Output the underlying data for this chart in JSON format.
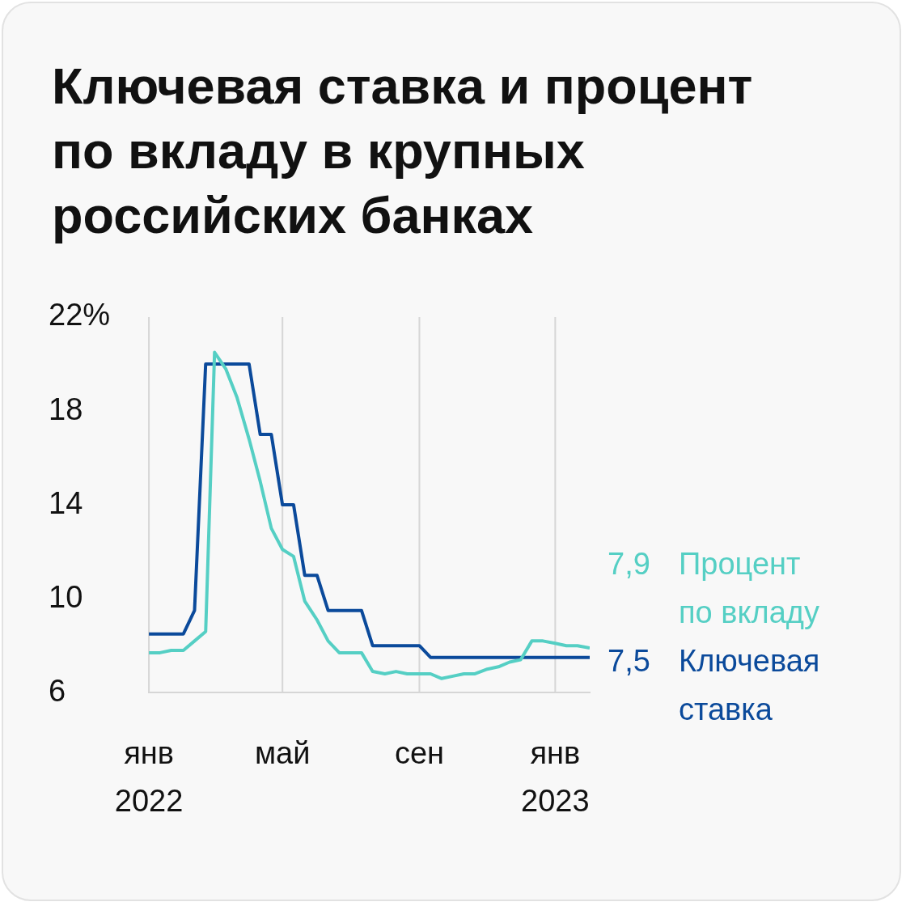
{
  "chart_data": {
    "type": "line",
    "title": "Ключевая ставка и процент по вкладу в крупных российских банках",
    "x": [
      "2022-01-01",
      "2022-01-11",
      "2022-01-21",
      "2022-02-01",
      "2022-02-11",
      "2022-02-21",
      "2022-03-01",
      "2022-03-11",
      "2022-03-21",
      "2022-04-01",
      "2022-04-11",
      "2022-04-21",
      "2022-05-01",
      "2022-05-11",
      "2022-05-21",
      "2022-06-01",
      "2022-06-11",
      "2022-06-21",
      "2022-07-01",
      "2022-07-11",
      "2022-07-21",
      "2022-08-01",
      "2022-08-11",
      "2022-08-21",
      "2022-09-01",
      "2022-09-11",
      "2022-09-21",
      "2022-10-01",
      "2022-10-11",
      "2022-10-21",
      "2022-11-01",
      "2022-11-11",
      "2022-11-21",
      "2022-12-01",
      "2022-12-11",
      "2022-12-21",
      "2023-01-01",
      "2023-01-11",
      "2023-01-21",
      "2023-02-01"
    ],
    "series": [
      {
        "name": "Процент по вкладу",
        "color": "#55cfc4",
        "values": [
          7.7,
          7.7,
          7.8,
          7.8,
          8.2,
          8.6,
          20.5,
          19.8,
          18.6,
          16.8,
          15.0,
          13.0,
          12.1,
          11.8,
          9.9,
          9.1,
          8.2,
          7.7,
          7.7,
          7.7,
          6.9,
          6.8,
          6.9,
          6.8,
          6.8,
          6.8,
          6.6,
          6.7,
          6.8,
          6.8,
          7.0,
          7.1,
          7.3,
          7.4,
          8.2,
          8.2,
          8.1,
          8.0,
          8.0,
          7.9
        ],
        "value_labels": [
          null,
          null,
          null,
          null,
          null,
          null,
          null,
          null,
          null,
          null,
          null,
          null,
          null,
          null,
          null,
          null,
          null,
          null,
          null,
          null,
          null,
          null,
          null,
          null,
          null,
          null,
          null,
          null,
          null,
          null,
          null,
          null,
          null,
          null,
          null,
          null,
          null,
          null,
          null,
          "7,9"
        ]
      },
      {
        "name": "Ключевая ставка",
        "color": "#0b4a9b",
        "values": [
          8.5,
          8.5,
          8.5,
          8.5,
          9.5,
          20,
          20,
          20,
          20,
          20,
          17,
          17,
          14,
          14,
          11,
          11,
          9.5,
          9.5,
          9.5,
          9.5,
          8,
          8,
          8,
          8,
          8,
          7.5,
          7.5,
          7.5,
          7.5,
          7.5,
          7.5,
          7.5,
          7.5,
          7.5,
          7.5,
          7.5,
          7.5,
          7.5,
          7.5,
          7.5
        ],
        "value_labels": [
          null,
          null,
          null,
          null,
          null,
          null,
          null,
          null,
          null,
          null,
          null,
          null,
          null,
          null,
          null,
          null,
          null,
          null,
          null,
          null,
          null,
          null,
          null,
          null,
          null,
          null,
          null,
          null,
          null,
          null,
          null,
          null,
          null,
          null,
          null,
          null,
          null,
          null,
          null,
          "7,5"
        ]
      }
    ],
    "xlim": [
      "2022-01-01",
      "2023-02-01"
    ],
    "xticks": [
      {
        "value": "2022-01-01",
        "label": "янв\n2022"
      },
      {
        "value": "2022-05-01",
        "label": "май"
      },
      {
        "value": "2022-09-01",
        "label": "сен"
      },
      {
        "value": "2023-01-01",
        "label": "янв\n2023"
      }
    ],
    "ylim": [
      6,
      22
    ],
    "yticks": [
      6,
      10,
      14,
      18,
      {
        "value": 22,
        "label": "22%"
      }
    ],
    "grid": "x",
    "marker": "none",
    "line_style": "solid"
  }
}
